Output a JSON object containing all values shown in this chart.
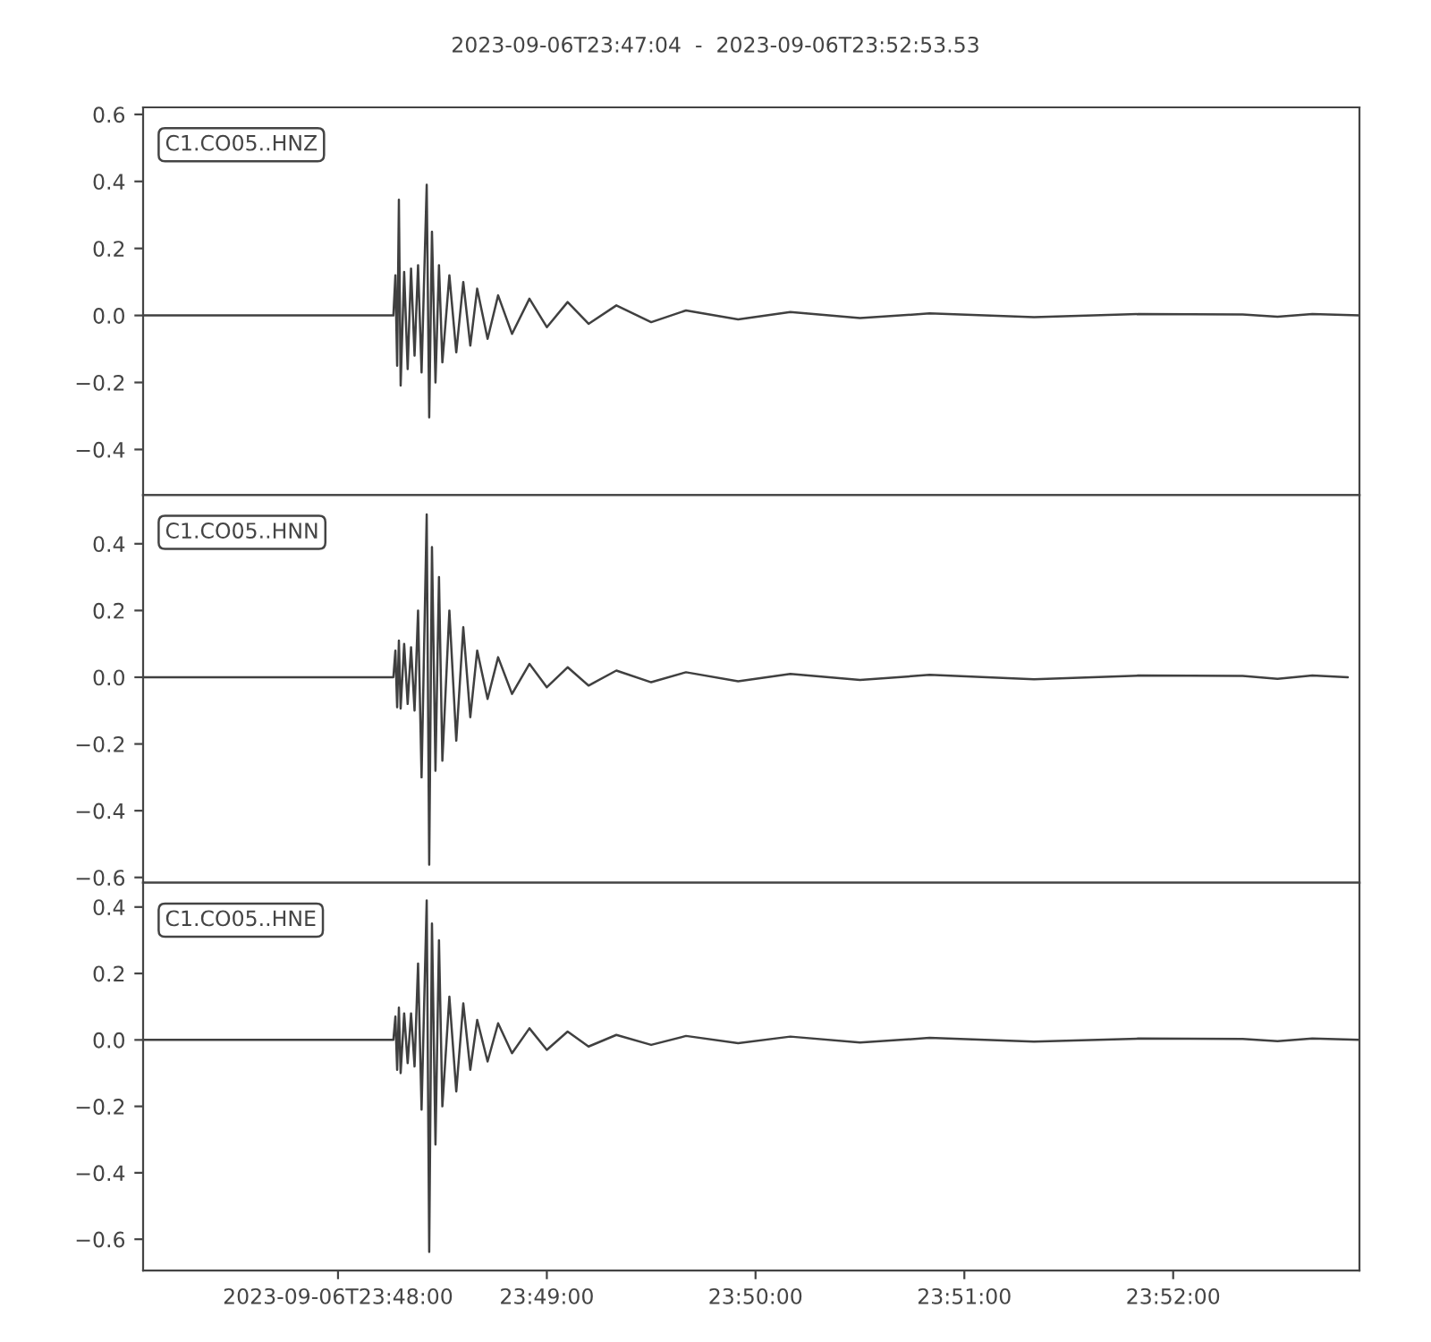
{
  "chart_data": [
    {
      "type": "line",
      "title": "2023-09-06T23:47:04  -  2023-09-06T23:52:53.53",
      "annotations": [
        "C1.CO05..HNZ"
      ],
      "tick_labels": "y",
      "x": [
        23.78444,
        23.80442,
        23.80458,
        23.80472,
        23.80486,
        23.805,
        23.80528,
        23.80556,
        23.80583,
        23.80611,
        23.80639,
        23.80667,
        23.80708,
        23.80728,
        23.8075,
        23.80778,
        23.80806,
        23.80833,
        23.80889,
        23.80944,
        23.81,
        23.81056,
        23.81111,
        23.81194,
        23.81278,
        23.81389,
        23.81528,
        23.81667,
        23.81833,
        23.82,
        23.82222,
        23.825,
        23.82778,
        23.83194,
        23.83611,
        23.84167,
        23.84722,
        23.85556,
        23.86389,
        23.87222,
        23.875,
        23.87778,
        23.88154
      ],
      "series": [
        {
          "color": "#404040",
          "values": [
            0,
            0,
            0.12,
            -0.15,
            0.345,
            -0.209,
            0.13,
            -0.16,
            0.14,
            -0.12,
            0.15,
            -0.17,
            0.39,
            -0.304,
            0.25,
            -0.2,
            0.15,
            -0.14,
            0.12,
            -0.11,
            0.1,
            -0.09,
            0.08,
            -0.07,
            0.06,
            -0.055,
            0.05,
            -0.035,
            0.04,
            -0.025,
            0.03,
            -0.02,
            0.015,
            -0.012,
            0.01,
            -0.008,
            0.006,
            -0.005,
            0.004,
            0.003,
            -0.004,
            0.004,
            0
          ]
        }
      ],
      "xlim": [
        23.78444,
        23.88154
      ],
      "ylim": [
        -0.536,
        0.621
      ],
      "yticks": [
        {
          "value": -0.4,
          "label": "−0.4"
        },
        {
          "value": -0.2,
          "label": "−0.2"
        },
        {
          "value": 0,
          "label": "0.0"
        },
        {
          "value": 0.2,
          "label": "0.2"
        },
        {
          "value": 0.4,
          "label": "0.4"
        },
        {
          "value": 0.6,
          "label": "0.6"
        }
      ]
    },
    {
      "type": "line",
      "annotations": [
        "C1.CO05..HNN"
      ],
      "tick_labels": "y",
      "x": [
        23.78444,
        23.80442,
        23.80458,
        23.80472,
        23.80486,
        23.805,
        23.80528,
        23.80556,
        23.80583,
        23.80611,
        23.80639,
        23.80667,
        23.80708,
        23.80728,
        23.8075,
        23.80778,
        23.80806,
        23.80833,
        23.80889,
        23.80944,
        23.81,
        23.81056,
        23.81111,
        23.81194,
        23.81278,
        23.81389,
        23.81528,
        23.81667,
        23.81833,
        23.82,
        23.82222,
        23.825,
        23.82778,
        23.83194,
        23.83611,
        23.84167,
        23.84722,
        23.85556,
        23.86389,
        23.87222,
        23.875,
        23.87778,
        23.88061
      ],
      "series": [
        {
          "color": "#404040",
          "values": [
            0,
            0,
            0.08,
            -0.09,
            0.11,
            -0.094,
            0.1,
            -0.08,
            0.09,
            -0.1,
            0.2,
            -0.3,
            0.488,
            -0.562,
            0.39,
            -0.28,
            0.3,
            -0.25,
            0.2,
            -0.19,
            0.15,
            -0.12,
            0.08,
            -0.065,
            0.06,
            -0.05,
            0.04,
            -0.03,
            0.03,
            -0.025,
            0.02,
            -0.015,
            0.015,
            -0.012,
            0.01,
            -0.008,
            0.007,
            -0.006,
            0.005,
            0.004,
            -0.005,
            0.005,
            0
          ]
        }
      ],
      "xlim": [
        23.78444,
        23.88154
      ],
      "ylim": [
        -0.616,
        0.546
      ],
      "yticks": [
        {
          "value": -0.6,
          "label": "−0.6"
        },
        {
          "value": -0.4,
          "label": "−0.4"
        },
        {
          "value": -0.2,
          "label": "−0.2"
        },
        {
          "value": 0,
          "label": "0.0"
        },
        {
          "value": 0.2,
          "label": "0.2"
        },
        {
          "value": 0.4,
          "label": "0.4"
        }
      ]
    },
    {
      "type": "line",
      "annotations": [
        "C1.CO05..HNE"
      ],
      "x": [
        23.78444,
        23.80442,
        23.80458,
        23.80472,
        23.80486,
        23.805,
        23.80528,
        23.80556,
        23.80583,
        23.80611,
        23.80639,
        23.80667,
        23.80708,
        23.80728,
        23.8075,
        23.80778,
        23.80806,
        23.80833,
        23.80889,
        23.80944,
        23.81,
        23.81056,
        23.81111,
        23.81194,
        23.81278,
        23.81389,
        23.81528,
        23.81667,
        23.81833,
        23.82,
        23.82222,
        23.825,
        23.82778,
        23.83194,
        23.83611,
        23.84167,
        23.84722,
        23.85556,
        23.86389,
        23.87222,
        23.875,
        23.87778,
        23.88154
      ],
      "series": [
        {
          "color": "#404040",
          "values": [
            0,
            0,
            0.07,
            -0.09,
            0.097,
            -0.1,
            0.08,
            -0.07,
            0.08,
            -0.08,
            0.23,
            -0.21,
            0.42,
            -0.638,
            0.35,
            -0.315,
            0.3,
            -0.2,
            0.13,
            -0.155,
            0.11,
            -0.09,
            0.06,
            -0.065,
            0.05,
            -0.04,
            0.035,
            -0.03,
            0.025,
            -0.02,
            0.015,
            -0.015,
            0.012,
            -0.01,
            0.01,
            -0.008,
            0.006,
            -0.005,
            0.004,
            0.003,
            -0.004,
            0.004,
            0
          ]
        }
      ],
      "xlim": [
        23.78444,
        23.88154
      ],
      "ylim": [
        -0.694,
        0.473
      ],
      "xticks": [
        {
          "value": 23.8,
          "label": "2023-09-06T23:48:00"
        },
        {
          "value": 23.81667,
          "label": "23:49:00"
        },
        {
          "value": 23.83333,
          "label": "23:50:00"
        },
        {
          "value": 23.85,
          "label": "23:51:00"
        },
        {
          "value": 23.86667,
          "label": "23:52:00"
        }
      ],
      "yticks": [
        {
          "value": -0.6,
          "label": "−0.6"
        },
        {
          "value": -0.4,
          "label": "−0.4"
        },
        {
          "value": -0.2,
          "label": "−0.2"
        },
        {
          "value": 0,
          "label": "0.0"
        },
        {
          "value": 0.2,
          "label": "0.2"
        },
        {
          "value": 0.4,
          "label": "0.4"
        }
      ]
    }
  ]
}
